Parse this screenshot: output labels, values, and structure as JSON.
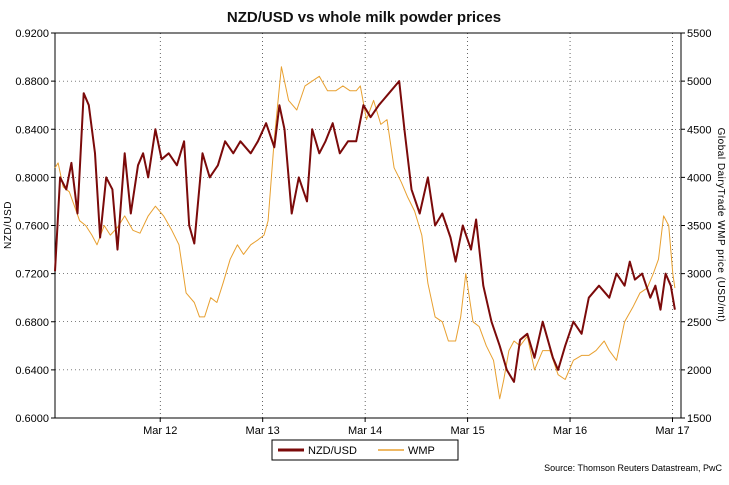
{
  "chart_data": {
    "type": "line",
    "title": "NZD/USD vs whole milk powder prices",
    "ylabel_left": "NZD/USD",
    "ylabel_right": "Global DairyTrade WMP price (USD/mt)",
    "xlabel": "",
    "x_ticks": [
      {
        "label": "Mar 12",
        "value": 2012.167
      },
      {
        "label": "Mar 13",
        "value": 2013.167
      },
      {
        "label": "Mar 14",
        "value": 2014.167
      },
      {
        "label": "Mar 15",
        "value": 2015.167
      },
      {
        "label": "Mar 16",
        "value": 2016.167
      },
      {
        "label": "Mar 17",
        "value": 2017.167
      }
    ],
    "xlim": [
      2011.14,
      2017.25
    ],
    "ylim_left": [
      0.6,
      0.92
    ],
    "ylim_right": [
      1500,
      5500
    ],
    "y_ticks_left": [
      "0.6000",
      "0.6400",
      "0.6800",
      "0.7200",
      "0.7600",
      "0.8000",
      "0.8400",
      "0.8800",
      "0.9200"
    ],
    "y_ticks_right": [
      "1500",
      "2000",
      "2500",
      "3000",
      "3500",
      "4000",
      "4500",
      "5000",
      "5500"
    ],
    "grid": true,
    "legend_placement": "bottom-center",
    "source": "Source: Thomson Reuters Datastream, PwC",
    "colors": {
      "nzdusd": "#7b0a0a",
      "wmp": "#e8a030",
      "grid": "#000000",
      "frame": "#000000"
    },
    "series": [
      {
        "name": "NZD/USD",
        "axis": "left",
        "x": [
          2011.14,
          2011.19,
          2011.25,
          2011.3,
          2011.36,
          2011.42,
          2011.47,
          2011.53,
          2011.58,
          2011.64,
          2011.7,
          2011.75,
          2011.82,
          2011.88,
          2011.95,
          2012.0,
          2012.05,
          2012.12,
          2012.18,
          2012.25,
          2012.33,
          2012.4,
          2012.45,
          2012.5,
          2012.58,
          2012.65,
          2012.73,
          2012.8,
          2012.88,
          2012.95,
          2013.05,
          2013.12,
          2013.2,
          2013.28,
          2013.33,
          2013.38,
          2013.45,
          2013.52,
          2013.6,
          2013.65,
          2013.72,
          2013.78,
          2013.85,
          2013.92,
          2014.0,
          2014.08,
          2014.15,
          2014.22,
          2014.3,
          2014.4,
          2014.5,
          2014.55,
          2014.62,
          2014.7,
          2014.78,
          2014.85,
          2014.92,
          2015.0,
          2015.05,
          2015.12,
          2015.2,
          2015.25,
          2015.32,
          2015.4,
          2015.48,
          2015.55,
          2015.62,
          2015.68,
          2015.75,
          2015.82,
          2015.9,
          2016.0,
          2016.05,
          2016.12,
          2016.2,
          2016.28,
          2016.35,
          2016.45,
          2016.55,
          2016.62,
          2016.7,
          2016.75,
          2016.8,
          2016.87,
          2016.95,
          2017.0,
          2017.05,
          2017.1,
          2017.15,
          2017.19
        ],
        "values": [
          0.722,
          0.8,
          0.79,
          0.812,
          0.77,
          0.87,
          0.86,
          0.82,
          0.75,
          0.8,
          0.79,
          0.74,
          0.82,
          0.77,
          0.81,
          0.82,
          0.8,
          0.84,
          0.815,
          0.82,
          0.81,
          0.83,
          0.76,
          0.745,
          0.82,
          0.8,
          0.81,
          0.83,
          0.82,
          0.83,
          0.82,
          0.83,
          0.845,
          0.825,
          0.86,
          0.84,
          0.77,
          0.8,
          0.78,
          0.84,
          0.82,
          0.83,
          0.845,
          0.82,
          0.83,
          0.83,
          0.86,
          0.85,
          0.86,
          0.87,
          0.88,
          0.84,
          0.79,
          0.77,
          0.8,
          0.76,
          0.77,
          0.75,
          0.73,
          0.76,
          0.74,
          0.765,
          0.71,
          0.68,
          0.66,
          0.64,
          0.63,
          0.665,
          0.67,
          0.65,
          0.68,
          0.65,
          0.64,
          0.66,
          0.68,
          0.67,
          0.7,
          0.71,
          0.7,
          0.72,
          0.71,
          0.73,
          0.715,
          0.72,
          0.7,
          0.71,
          0.69,
          0.72,
          0.71,
          0.69
        ]
      },
      {
        "name": "WMP",
        "axis": "right",
        "x": [
          2011.14,
          2011.17,
          2011.22,
          2011.28,
          2011.33,
          2011.38,
          2011.44,
          2011.5,
          2011.55,
          2011.62,
          2011.68,
          2011.75,
          2011.82,
          2011.9,
          2011.97,
          2012.05,
          2012.12,
          2012.2,
          2012.28,
          2012.35,
          2012.42,
          2012.5,
          2012.55,
          2012.6,
          2012.66,
          2012.72,
          2012.78,
          2012.85,
          2012.92,
          2012.98,
          2013.05,
          2013.12,
          2013.18,
          2013.22,
          2013.28,
          2013.35,
          2013.42,
          2013.5,
          2013.58,
          2013.65,
          2013.72,
          2013.8,
          2013.88,
          2013.95,
          2014.02,
          2014.08,
          2014.12,
          2014.18,
          2014.25,
          2014.32,
          2014.38,
          2014.45,
          2014.52,
          2014.58,
          2014.65,
          2014.72,
          2014.78,
          2014.85,
          2014.92,
          2014.98,
          2015.05,
          2015.1,
          2015.15,
          2015.22,
          2015.28,
          2015.35,
          2015.42,
          2015.48,
          2015.52,
          2015.57,
          2015.62,
          2015.68,
          2015.75,
          2015.82,
          2015.9,
          2015.97,
          2016.05,
          2016.12,
          2016.2,
          2016.28,
          2016.35,
          2016.42,
          2016.5,
          2016.55,
          2016.62,
          2016.7,
          2016.78,
          2016.85,
          2016.92,
          2016.98,
          2017.03,
          2017.08,
          2017.13,
          2017.17,
          2017.19
        ],
        "values": [
          4100,
          4150,
          3900,
          3850,
          3700,
          3550,
          3500,
          3400,
          3300,
          3500,
          3400,
          3480,
          3600,
          3450,
          3420,
          3600,
          3700,
          3600,
          3450,
          3300,
          2800,
          2700,
          2550,
          2550,
          2750,
          2700,
          2900,
          3150,
          3300,
          3200,
          3300,
          3350,
          3400,
          3550,
          4400,
          5150,
          4800,
          4700,
          4950,
          5000,
          5050,
          4900,
          4900,
          4950,
          4900,
          4900,
          4950,
          4600,
          4800,
          4550,
          4600,
          4100,
          3950,
          3800,
          3650,
          3400,
          2900,
          2550,
          2500,
          2300,
          2300,
          2550,
          3000,
          2500,
          2450,
          2250,
          2100,
          1700,
          1900,
          2200,
          2300,
          2250,
          2350,
          2000,
          2200,
          2200,
          1950,
          1900,
          2100,
          2150,
          2150,
          2200,
          2300,
          2200,
          2100,
          2500,
          2650,
          2800,
          2850,
          3000,
          3150,
          3600,
          3500,
          3000,
          2850
        ]
      }
    ]
  },
  "legend": {
    "nzdusd_label": "NZD/USD",
    "wmp_label": "WMP"
  }
}
